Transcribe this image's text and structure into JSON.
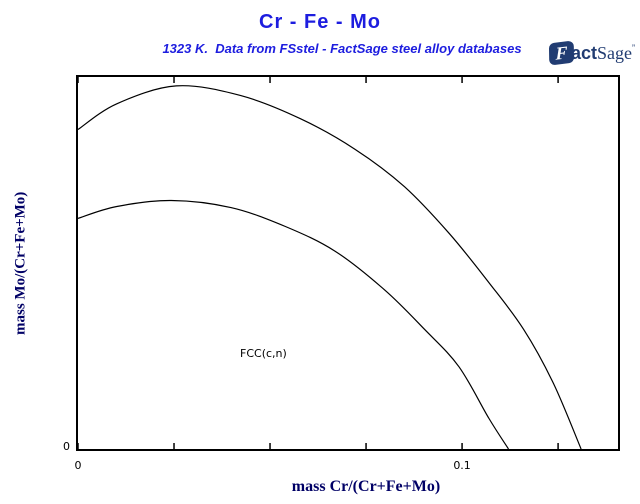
{
  "header": {
    "title": "Cr - Fe - Mo",
    "subtitle": "1323 K.  Data from FSstel - FactSage steel alloy databases",
    "logo": {
      "f": "F",
      "act": "act",
      "sage": "Sage",
      "mark": "”"
    }
  },
  "colors": {
    "title_blue": "#1d1ddf",
    "axis_navy": "#000066",
    "logo_navy": "#213c72",
    "line_color": "#000000"
  },
  "chart_data": {
    "type": "line",
    "title": "Cr - Fe - Mo",
    "subtitle": "1323 K.  Data from FSstel - FactSage steel alloy databases",
    "xlabel": "mass Cr/(Cr+Fe+Mo)",
    "ylabel": "mass Mo/(Cr+Fe+Mo)",
    "xlim": [
      0,
      0.1406
    ],
    "grid": false,
    "legend": false,
    "x_ticks": [
      0,
      0.025,
      0.05,
      0.075,
      0.1,
      0.125
    ],
    "x_tick_labels": [
      {
        "value": 0,
        "label": "0"
      },
      {
        "value": 0.1,
        "label": "0.1"
      }
    ],
    "y_tick_labels": [
      {
        "frac": 0,
        "label": "0"
      }
    ],
    "y_axis_note": "y-axis unlabeled except 0; curve y-values given as fraction of axis height",
    "region_label": {
      "text": "FCC(c,n)",
      "x": 0.0424,
      "y_frac": 0.27
    },
    "line_color": "#000000",
    "series": [
      {
        "name": "phase-boundary-upper",
        "points": [
          [
            0.0,
            0.859
          ],
          [
            0.0101,
            0.928
          ],
          [
            0.0256,
            0.976
          ],
          [
            0.0424,
            0.95
          ],
          [
            0.0579,
            0.888
          ],
          [
            0.0721,
            0.806
          ],
          [
            0.085,
            0.705
          ],
          [
            0.0966,
            0.58
          ],
          [
            0.107,
            0.447
          ],
          [
            0.116,
            0.322
          ],
          [
            0.1238,
            0.176
          ],
          [
            0.131,
            0.0
          ]
        ]
      },
      {
        "name": "phase-boundary-lower",
        "points": [
          [
            0.0,
            0.62
          ],
          [
            0.0101,
            0.652
          ],
          [
            0.0243,
            0.668
          ],
          [
            0.0398,
            0.649
          ],
          [
            0.054,
            0.598
          ],
          [
            0.0669,
            0.532
          ],
          [
            0.0798,
            0.428
          ],
          [
            0.0902,
            0.322
          ],
          [
            0.0992,
            0.221
          ],
          [
            0.107,
            0.082
          ],
          [
            0.1121,
            0.0
          ]
        ]
      }
    ]
  }
}
